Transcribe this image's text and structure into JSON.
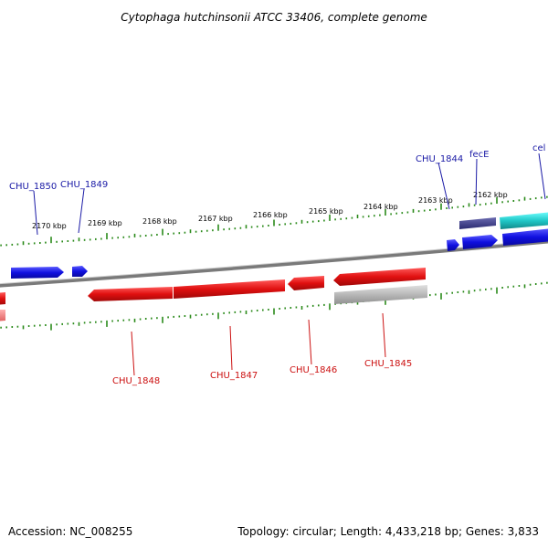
{
  "title": "Cytophaga hutchinsonii ATCC 33406, complete genome",
  "footer": {
    "accession": "Accession: NC_008255",
    "summary": "Topology: circular; Length: 4,433,218 bp; Genes: 3,833"
  },
  "colors": {
    "forward_gene": "#1010e0",
    "reverse_gene": "#e01010",
    "tick": "#2a8a1a",
    "backbone": "#7a7a7a",
    "pseudo_gene": "#b8b8b8",
    "cyan_gene": "#20c8c8",
    "navy_gene": "#3a3a8a",
    "fwd_label": "#1a1aa6",
    "rev_label": "#cc1111"
  },
  "kbp_labels": [
    "2170 kbp",
    "2169 kbp",
    "2168 kbp",
    "2167 kbp",
    "2166 kbp",
    "2165 kbp",
    "2164 kbp",
    "2163 kbp",
    "2162 kbp"
  ],
  "forward_genes": [
    "CHU_1850",
    "CHU_1849",
    "CHU_1844",
    "fecE",
    "cel"
  ],
  "reverse_genes": [
    "CHU_1848",
    "CHU_1847",
    "CHU_1846",
    "CHU_1845"
  ]
}
